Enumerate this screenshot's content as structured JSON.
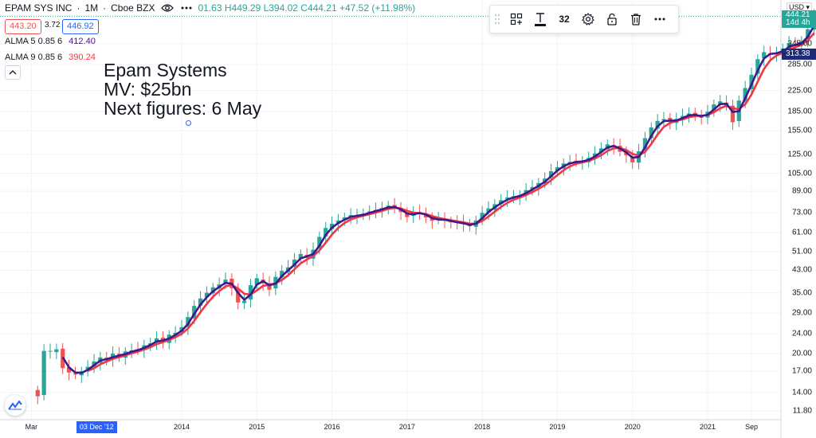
{
  "symbol": {
    "name": "EPAM SYS INC",
    "interval": "1M",
    "exchange": "Cboe BZX",
    "ohlc": "01.63 H449.29 L394.02 C444.21 +47.52 (+11.98%)"
  },
  "price_boxes": {
    "sell": "443.20",
    "spread": "3.72",
    "buy": "446.92"
  },
  "indicators": [
    {
      "label": "ALMA 5 0.85 6",
      "value": "412.40",
      "color": "#4a148c"
    },
    {
      "label": "ALMA 9 0.85 6",
      "value": "390.24",
      "color": "#f23645"
    }
  ],
  "note": {
    "lines": [
      "Epam Systems",
      "MV: $25bn",
      "Next figures: 6 May"
    ]
  },
  "toolbar": {
    "font_size": "32"
  },
  "price_axis": {
    "currency": "USD",
    "labels": [
      "345.00",
      "285.00",
      "225.00",
      "185.00",
      "155.00",
      "125.00",
      "105.00",
      "89.00",
      "73.00",
      "61.00",
      "51.00",
      "43.00",
      "35.00",
      "29.00",
      "24.00",
      "20.00",
      "17.00",
      "14.00",
      "11.80"
    ],
    "current_price": "444.21",
    "countdown": "14d 4h",
    "marker_price": "313.38"
  },
  "time_axis": {
    "labels": [
      "Mar",
      "2014",
      "2015",
      "2016",
      "2017",
      "2018",
      "2019",
      "2020",
      "2021",
      "Sep"
    ],
    "highlight": "03 Dec '12"
  },
  "colors": {
    "up": "#26a69a",
    "down": "#ef5350",
    "alma5": "#3d1a8c",
    "alma9": "#f23645",
    "accent": "#2962ff"
  },
  "chart_data": {
    "type": "candlestick",
    "x_start": "2012-02",
    "interval": "1M",
    "closes": [
      13.5,
      20.5,
      20.5,
      20.8,
      17.5,
      16.8,
      16.5,
      17.0,
      17.7,
      18.6,
      19.3,
      18.8,
      20.0,
      19.5,
      20.4,
      20.6,
      20.8,
      21.6,
      22.0,
      23.0,
      22.3,
      23.8,
      24.2,
      25.5,
      28.0,
      31.0,
      33.2,
      35.0,
      36.8,
      37.8,
      39.5,
      36.5,
      32.0,
      32.5,
      37.5,
      40.0,
      38.2,
      36.0,
      40.5,
      42.8,
      44.2,
      47.5,
      50.0,
      48.2,
      52.0,
      58.5,
      63.5,
      66.0,
      68.0,
      70.0,
      71.5,
      71.0,
      72.5,
      74.0,
      75.0,
      76.2,
      78.0,
      76.3,
      73.5,
      70.2,
      73.5,
      73.0,
      70.0,
      67.8,
      69.0,
      68.0,
      67.0,
      66.5,
      65.8,
      64.5,
      68.0,
      73.0,
      76.0,
      79.0,
      82.0,
      84.0,
      85.0,
      86.0,
      90.0,
      92.5,
      96.0,
      100.0,
      107.0,
      111.0,
      115.0,
      116.5,
      117.0,
      117.5,
      121.0,
      126.0,
      132.0,
      137.0,
      134.0,
      128.0,
      124.0,
      116.0,
      128.5,
      145.0,
      160.0,
      170.0,
      173.0,
      168.0,
      173.0,
      178.0,
      182.0,
      178.0,
      176.0,
      185.0,
      198.0,
      203.5,
      195.0,
      168.0,
      205.0,
      230.0,
      260.0,
      300.0,
      320.0,
      315.0,
      318.0,
      330.0,
      348.0,
      340.0,
      355.0,
      395.0,
      444.21
    ],
    "alma5_last": 412.4,
    "alma9_last": 390.24,
    "price_axis_scale": "log"
  }
}
